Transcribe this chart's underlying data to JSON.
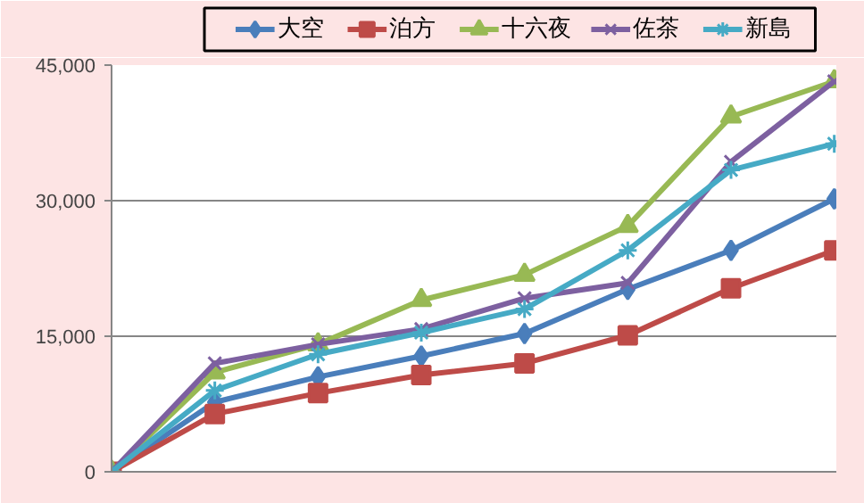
{
  "chart_data": {
    "type": "line",
    "categories": [
      null,
      null,
      null,
      null,
      null,
      null,
      null,
      null
    ],
    "series": [
      {
        "name": "大空",
        "color": "#4a7ebb",
        "marker": "diamond",
        "values": [
          0,
          7700,
          10500,
          12800,
          15300,
          20200,
          24500,
          30200
        ]
      },
      {
        "name": "泊方",
        "color": "#be4b48",
        "marker": "square",
        "values": [
          0,
          6400,
          8700,
          10700,
          12000,
          15100,
          20300,
          24500
        ]
      },
      {
        "name": "十六夜",
        "color": "#98b954",
        "marker": "triangle",
        "values": [
          0,
          11000,
          14100,
          19000,
          21800,
          27200,
          39300,
          43200
        ]
      },
      {
        "name": "佐茶",
        "color": "#7d60a0",
        "marker": "x",
        "values": [
          0,
          12000,
          14100,
          15800,
          19200,
          20900,
          34300,
          43200
        ]
      },
      {
        "name": "新島",
        "color": "#46aac5",
        "marker": "cross",
        "values": [
          0,
          9000,
          13000,
          15400,
          18000,
          24500,
          33400,
          36300
        ]
      }
    ],
    "ylim": [
      0,
      45000
    ],
    "yticks": [
      0,
      {
        "value": 15000,
        "label": "15,000"
      },
      {
        "value": 30000,
        "label": "30,000"
      },
      {
        "value": 45000,
        "label": "45,000"
      }
    ],
    "grid": "y",
    "legend": "top",
    "tick_labels": "y"
  }
}
